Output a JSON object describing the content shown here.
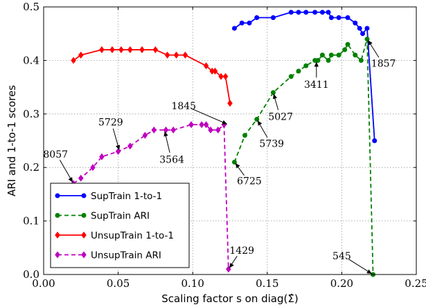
{
  "chart_data": {
    "type": "line",
    "xlabel": "Scaling factor s on diag(Σ̂)",
    "ylabel": "ARI and 1-to-1 scores",
    "xlim": [
      0,
      0.25
    ],
    "ylim": [
      0,
      0.5
    ],
    "xticks": [
      0.0,
      0.05,
      0.1,
      0.15,
      0.2,
      0.25
    ],
    "yticks": [
      0.0,
      0.1,
      0.2,
      0.3,
      0.4,
      0.5
    ],
    "xtick_labels": [
      "0.00",
      "0.05",
      "0.10",
      "0.15",
      "0.20",
      "0.25"
    ],
    "ytick_labels": [
      "0.0",
      "0.1",
      "0.2",
      "0.3",
      "0.4",
      "0.5"
    ],
    "grid": true,
    "legend_position": "bottom-left",
    "series": [
      {
        "name": "SupTrain 1-to-1",
        "color": "#0000ff",
        "style": "solid",
        "marker": "circle",
        "x": [
          0.128,
          0.133,
          0.138,
          0.143,
          0.154,
          0.166,
          0.171,
          0.176,
          0.182,
          0.187,
          0.191,
          0.193,
          0.198,
          0.204,
          0.209,
          0.212,
          0.214,
          0.217,
          0.222
        ],
        "y": [
          0.46,
          0.47,
          0.47,
          0.48,
          0.48,
          0.49,
          0.49,
          0.49,
          0.49,
          0.49,
          0.49,
          0.48,
          0.48,
          0.48,
          0.47,
          0.46,
          0.45,
          0.46,
          0.25
        ]
      },
      {
        "name": "SupTrain ARI",
        "color": "#008000",
        "style": "dashed",
        "marker": "circle",
        "x": [
          0.128,
          0.135,
          0.143,
          0.154,
          0.166,
          0.171,
          0.176,
          0.182,
          0.184,
          0.187,
          0.191,
          0.193,
          0.198,
          0.202,
          0.204,
          0.209,
          0.213,
          0.217,
          0.221
        ],
        "y": [
          0.21,
          0.26,
          0.29,
          0.34,
          0.37,
          0.38,
          0.39,
          0.4,
          0.4,
          0.41,
          0.4,
          0.41,
          0.41,
          0.42,
          0.43,
          0.41,
          0.4,
          0.44,
          0.0
        ]
      },
      {
        "name": "UnsupTrain 1-to-1",
        "color": "#ff0000",
        "style": "solid",
        "marker": "diamond",
        "x": [
          0.02,
          0.025,
          0.039,
          0.046,
          0.052,
          0.058,
          0.066,
          0.075,
          0.083,
          0.089,
          0.095,
          0.109,
          0.113,
          0.115,
          0.119,
          0.122,
          0.125
        ],
        "y": [
          0.4,
          0.41,
          0.42,
          0.42,
          0.42,
          0.42,
          0.42,
          0.42,
          0.41,
          0.41,
          0.41,
          0.39,
          0.38,
          0.38,
          0.37,
          0.37,
          0.32
        ]
      },
      {
        "name": "UnsupTrain ARI",
        "color": "#bf00bf",
        "style": "dashed",
        "marker": "diamond",
        "x": [
          0.02,
          0.025,
          0.033,
          0.039,
          0.05,
          0.058,
          0.068,
          0.074,
          0.082,
          0.087,
          0.099,
          0.106,
          0.109,
          0.112,
          0.117,
          0.121,
          0.124
        ],
        "y": [
          0.17,
          0.18,
          0.2,
          0.22,
          0.23,
          0.24,
          0.26,
          0.27,
          0.27,
          0.27,
          0.28,
          0.28,
          0.28,
          0.27,
          0.27,
          0.28,
          0.01
        ]
      }
    ],
    "annotations": [
      {
        "text": "8057",
        "x": 0.02,
        "y": 0.17,
        "text_x": 0.008,
        "text_y": 0.225
      },
      {
        "text": "5729",
        "x": 0.051,
        "y": 0.23,
        "text_x": 0.045,
        "text_y": 0.285
      },
      {
        "text": "3564",
        "x": 0.081,
        "y": 0.27,
        "text_x": 0.086,
        "text_y": 0.215
      },
      {
        "text": "1845",
        "x": 0.124,
        "y": 0.28,
        "text_x": 0.094,
        "text_y": 0.315
      },
      {
        "text": "1429",
        "x": 0.124,
        "y": 0.01,
        "text_x": 0.133,
        "text_y": 0.045
      },
      {
        "text": "6725",
        "x": 0.128,
        "y": 0.21,
        "text_x": 0.138,
        "text_y": 0.175
      },
      {
        "text": "5739",
        "x": 0.143,
        "y": 0.29,
        "text_x": 0.153,
        "text_y": 0.245
      },
      {
        "text": "5027",
        "x": 0.154,
        "y": 0.34,
        "text_x": 0.159,
        "text_y": 0.295
      },
      {
        "text": "3411",
        "x": 0.183,
        "y": 0.4,
        "text_x": 0.183,
        "text_y": 0.355
      },
      {
        "text": "1857",
        "x": 0.217,
        "y": 0.44,
        "text_x": 0.228,
        "text_y": 0.395
      },
      {
        "text": "545",
        "x": 0.221,
        "y": 0.0,
        "text_x": 0.2,
        "text_y": 0.035
      }
    ]
  }
}
